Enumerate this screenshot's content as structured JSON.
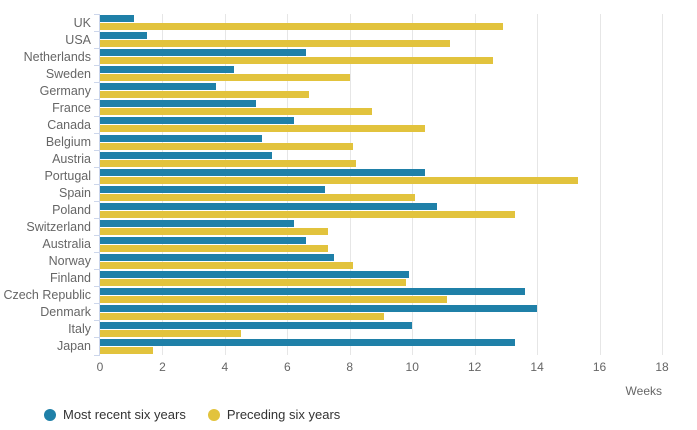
{
  "chart_data": {
    "type": "bar",
    "orientation": "horizontal",
    "categories": [
      "UK",
      "USA",
      "Netherlands",
      "Sweden",
      "Germany",
      "France",
      "Canada",
      "Belgium",
      "Austria",
      "Portugal",
      "Spain",
      "Poland",
      "Switzerland",
      "Australia",
      "Norway",
      "Finland",
      "Czech Republic",
      "Denmark",
      "Italy",
      "Japan"
    ],
    "series": [
      {
        "name": "Most recent six years",
        "color": "#1f80a8",
        "values": [
          1.1,
          1.5,
          6.6,
          4.3,
          3.7,
          5.0,
          6.2,
          5.2,
          5.5,
          10.4,
          7.2,
          10.8,
          6.2,
          6.6,
          7.5,
          9.9,
          13.6,
          14.0,
          10.0,
          13.3
        ]
      },
      {
        "name": "Preceding six years",
        "color": "#e2c33d",
        "values": [
          12.9,
          11.2,
          12.6,
          8.0,
          6.7,
          8.7,
          10.4,
          8.1,
          8.2,
          15.3,
          10.1,
          13.3,
          7.3,
          7.3,
          8.1,
          9.8,
          11.1,
          9.1,
          4.5,
          1.7
        ]
      }
    ],
    "xlabel": "Weeks",
    "xlim": [
      0,
      18
    ],
    "xticks": [
      0,
      2,
      4,
      6,
      8,
      10,
      12,
      14,
      16,
      18
    ],
    "grid": true,
    "legend_position": "bottom-left",
    "axis_tick_color": "#ccd6eb",
    "gridline_color": "#e6e6e6",
    "label_color": "#666666"
  }
}
